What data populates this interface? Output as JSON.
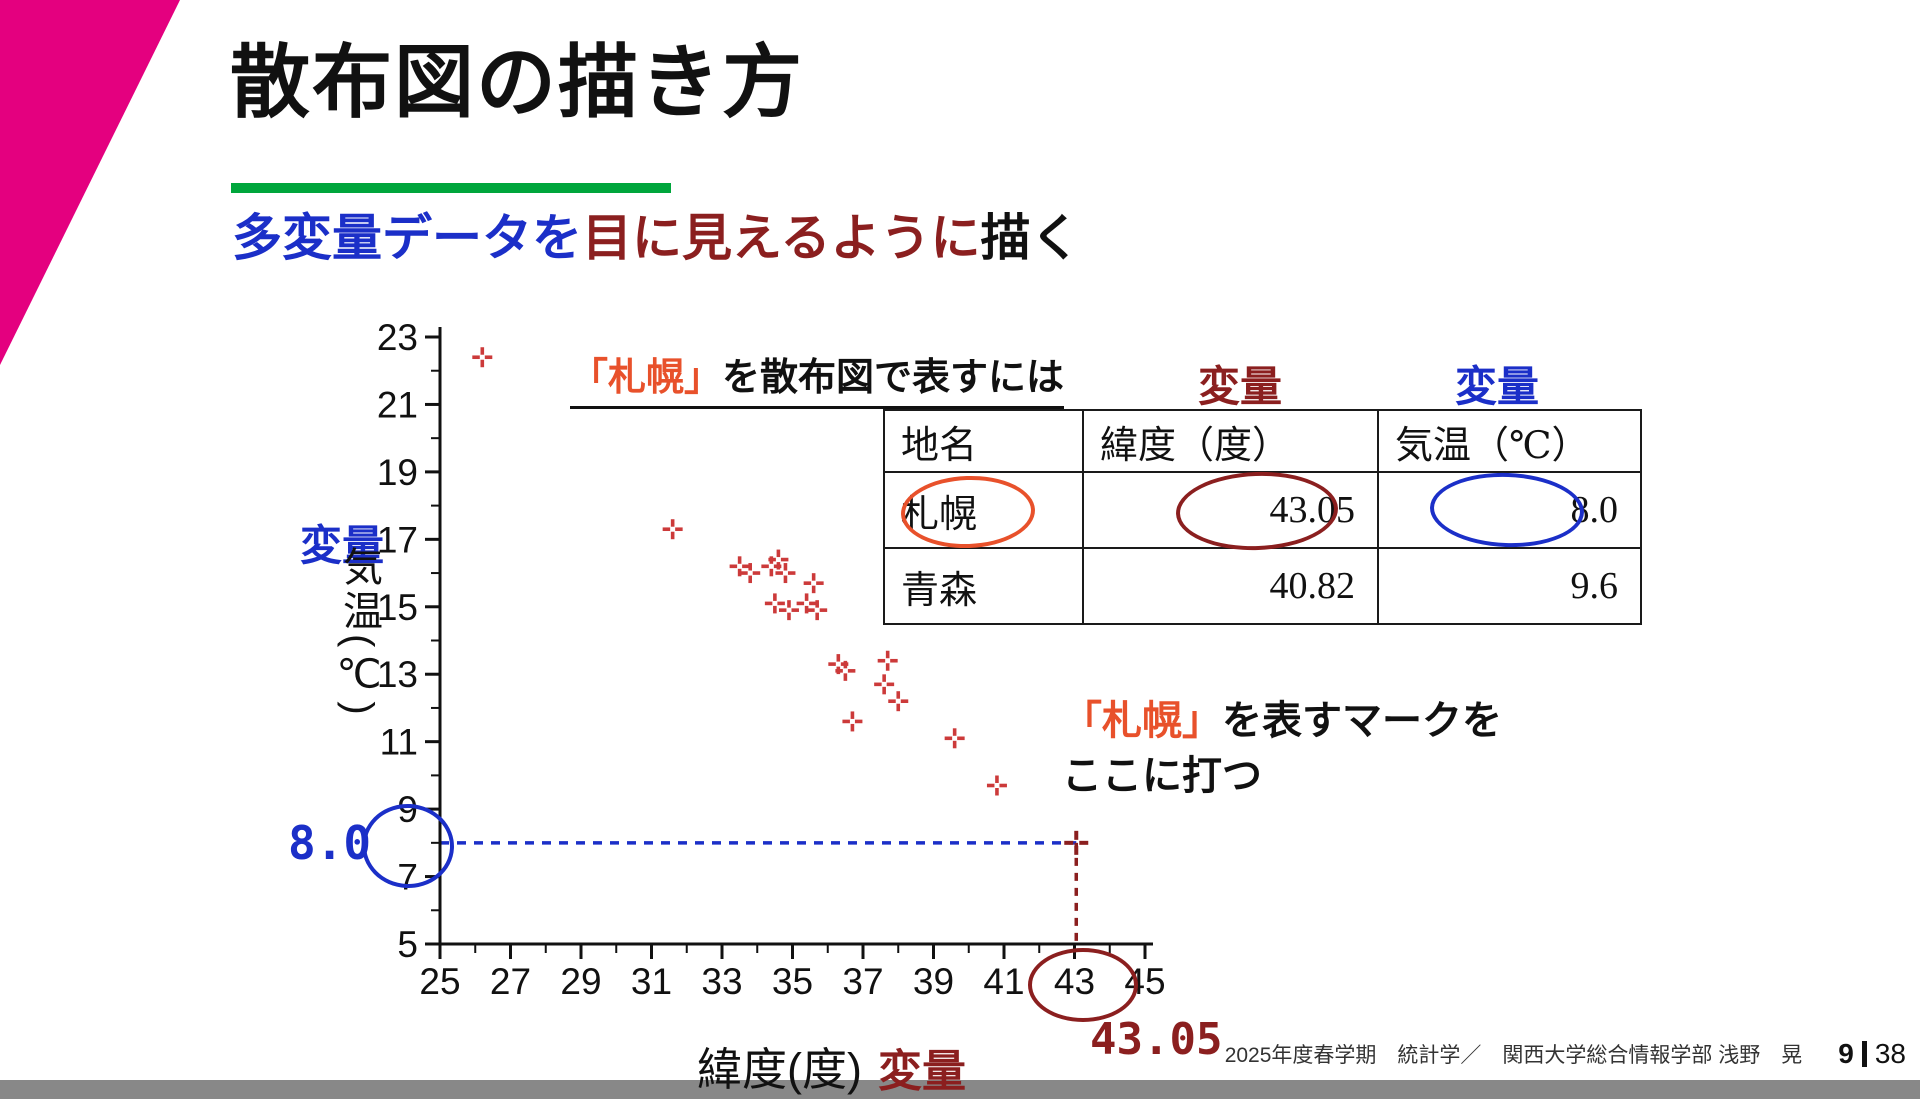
{
  "slide": {
    "title": "散布図の描き方",
    "subtitle": {
      "p1": "多変量データを",
      "p2": "目に見えるように",
      "p3": "描く"
    },
    "heading": {
      "bracket": "「札幌」",
      "rest": "を散布図で表すには"
    },
    "annotation": {
      "bracket": "「札幌」",
      "rest": "を表すマークを",
      "line2": "ここに打つ"
    },
    "labels": {
      "var_left": "変量",
      "var_table_red": "変量",
      "var_table_blue": "変量",
      "var_axis": "変量",
      "val8": "8.0",
      "val4305": "43.05"
    },
    "footer": {
      "course": "2025年度春学期　統計学／　関西大学総合情報学部 浅野　晃",
      "page": "9",
      "total": "38"
    }
  },
  "colors": {
    "accent_magenta": "#e4007f",
    "accent_green": "#00a63c",
    "blue": "#1b2fc8",
    "maroon": "#8b1f1f",
    "orange": "#e8512b",
    "marker_red": "#cc3a3a"
  },
  "table": {
    "headers": [
      "地名",
      "緯度（度）",
      "気温（℃）"
    ],
    "rows": [
      [
        "札幌",
        "43.05",
        "8.0"
      ],
      [
        "青森",
        "40.82",
        "9.6"
      ]
    ]
  },
  "chart_data": {
    "type": "scatter",
    "title": "",
    "xlabel": "緯度(度)",
    "ylabel": "気温(℃)",
    "xlim": [
      25,
      45
    ],
    "ylim": [
      5,
      23
    ],
    "xticks": [
      25,
      27,
      29,
      31,
      33,
      35,
      37,
      39,
      41,
      43,
      45
    ],
    "yticks": [
      5,
      7,
      9,
      11,
      13,
      15,
      17,
      19,
      21,
      23
    ],
    "grid": false,
    "legend": false,
    "marker": "plus",
    "marker_color": "#cc3a3a",
    "points": [
      [
        26.2,
        22.4
      ],
      [
        31.6,
        17.3
      ],
      [
        33.5,
        16.2
      ],
      [
        33.8,
        16.0
      ],
      [
        34.4,
        16.2
      ],
      [
        34.6,
        16.4
      ],
      [
        34.8,
        16.0
      ],
      [
        35.6,
        15.7
      ],
      [
        34.5,
        15.1
      ],
      [
        34.9,
        14.9
      ],
      [
        35.4,
        15.1
      ],
      [
        35.7,
        14.9
      ],
      [
        36.3,
        13.3
      ],
      [
        36.5,
        13.1
      ],
      [
        37.7,
        13.4
      ],
      [
        37.6,
        12.7
      ],
      [
        38.0,
        12.2
      ],
      [
        36.7,
        11.6
      ],
      [
        39.6,
        11.1
      ],
      [
        40.8,
        9.7
      ]
    ],
    "highlight": {
      "label": "札幌",
      "x": 43.05,
      "y": 8.0,
      "color": "#8b1f1f"
    },
    "guides": {
      "horizontal": {
        "y": 8.0,
        "color": "#1b2fc8",
        "style": "dashed"
      },
      "vertical": {
        "x": 43.05,
        "color": "#8b1f1f",
        "style": "dashed"
      }
    }
  }
}
